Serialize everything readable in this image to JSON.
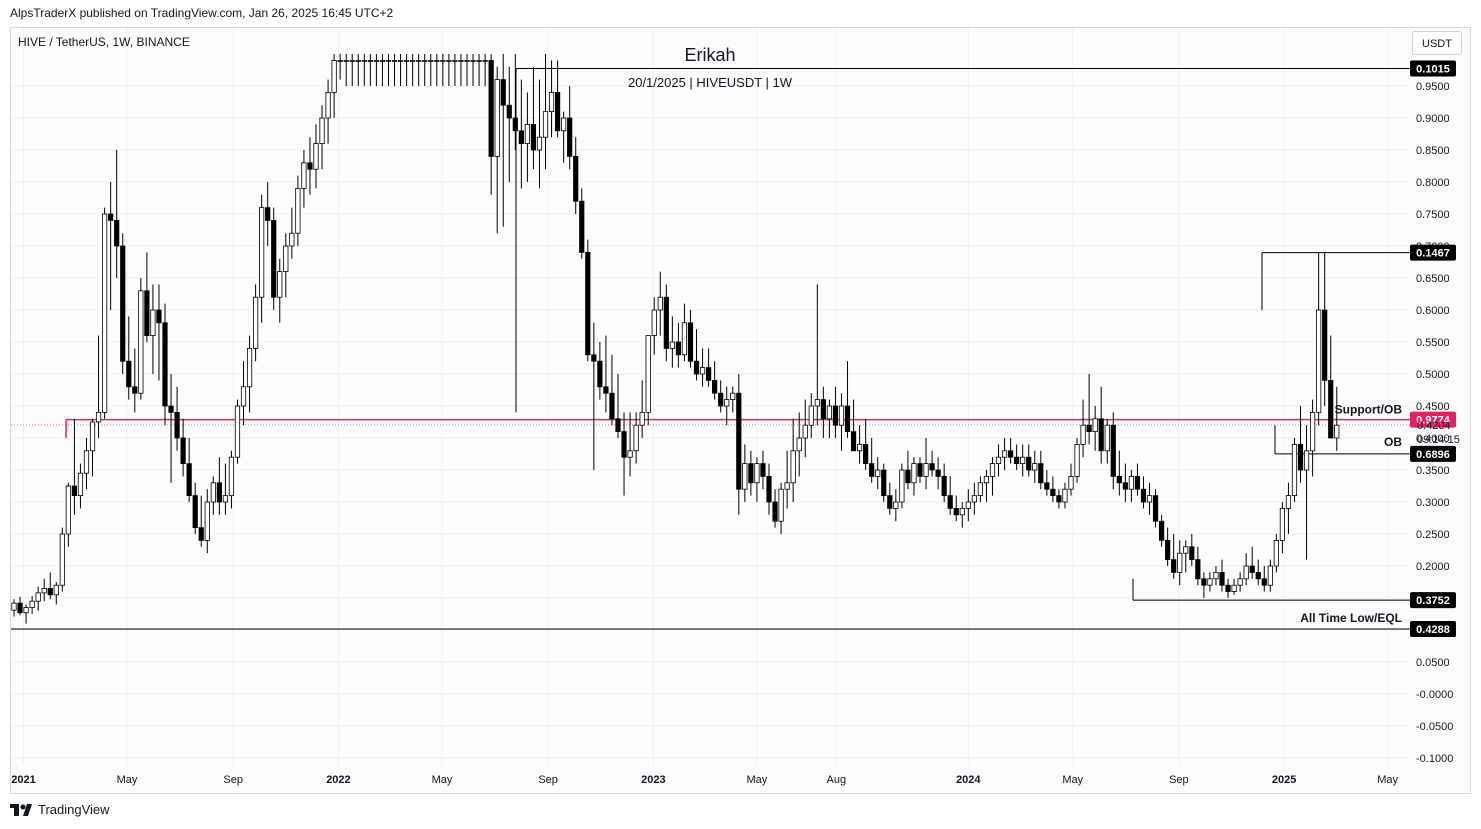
{
  "header": {
    "published_by": "AlpsTraderX published on TradingView.com, Jan 26, 2025 16:45 UTC+2",
    "symbol": "HIVE / TetherUS, 1W, BINANCE",
    "currency_button": "USDT"
  },
  "footer": {
    "brand": "TradingView",
    "logo": "tradingview-logo-icon"
  },
  "annotations": {
    "title": "Erikah",
    "subtitle": "20/1/2025 | HIVEUSDT | 1W",
    "support_label": "Support/OB",
    "ob_label": "OB",
    "atl_label": "All Time Low/EQL",
    "countdown": "09:14:15",
    "last_price": "0.4204"
  },
  "colors": {
    "support_line": "#e91e63",
    "candle_outline": "#000000",
    "bearish_fill": "#000000",
    "bullish_fill": "#ffffff",
    "label_bg": "#000000"
  },
  "chart_data": {
    "type": "candlestick",
    "title": "HIVE / TetherUS, 1W, BINANCE",
    "ylim": [
      -0.1,
      1.0
    ],
    "yticks": [
      -0.1,
      -0.05,
      0.0,
      0.05,
      0.1,
      0.15,
      0.2,
      0.25,
      0.3,
      0.35,
      0.4,
      0.45,
      0.5,
      0.55,
      0.6,
      0.65,
      0.7,
      0.75,
      0.8,
      0.85,
      0.9,
      0.95
    ],
    "ytick_labels": [
      "-0.1000",
      "-0.0500",
      "-0.0000",
      "0.0500",
      "0.1000",
      "0.1500",
      "0.2000",
      "0.2500",
      "0.3000",
      "0.3500",
      "0.4000",
      "0.4500",
      "0.5000",
      "0.5500",
      "0.6000",
      "0.6500",
      "0.7000",
      "0.7500",
      "0.8000",
      "0.8500",
      "0.9000",
      "0.9500"
    ],
    "xticks": [
      {
        "label": "2021",
        "date": "2021-01-01",
        "bold": true
      },
      {
        "label": "May",
        "date": "2021-05-01",
        "bold": false
      },
      {
        "label": "Sep",
        "date": "2021-09-01",
        "bold": false
      },
      {
        "label": "2022",
        "date": "2022-01-01",
        "bold": true
      },
      {
        "label": "May",
        "date": "2022-05-01",
        "bold": false
      },
      {
        "label": "Sep",
        "date": "2022-09-01",
        "bold": false
      },
      {
        "label": "2023",
        "date": "2023-01-01",
        "bold": true
      },
      {
        "label": "May",
        "date": "2023-05-01",
        "bold": false
      },
      {
        "label": "Aug",
        "date": "2023-08-01",
        "bold": false
      },
      {
        "label": "2024",
        "date": "2024-01-01",
        "bold": true
      },
      {
        "label": "May",
        "date": "2024-05-01",
        "bold": false
      },
      {
        "label": "Sep",
        "date": "2024-09-01",
        "bold": false
      },
      {
        "label": "2025",
        "date": "2025-01-01",
        "bold": true
      },
      {
        "label": "May",
        "date": "2025-05-01",
        "bold": false
      }
    ],
    "candles": [
      [
        0.131,
        0.148,
        0.121,
        0.142
      ],
      [
        0.142,
        0.152,
        0.123,
        0.127
      ],
      [
        0.127,
        0.14,
        0.11,
        0.135
      ],
      [
        0.135,
        0.153,
        0.125,
        0.145
      ],
      [
        0.145,
        0.168,
        0.13,
        0.158
      ],
      [
        0.158,
        0.18,
        0.145,
        0.165
      ],
      [
        0.165,
        0.19,
        0.148,
        0.155
      ],
      [
        0.155,
        0.175,
        0.14,
        0.17
      ],
      [
        0.17,
        0.26,
        0.16,
        0.25
      ],
      [
        0.25,
        0.33,
        0.23,
        0.325
      ],
      [
        0.325,
        0.43,
        0.28,
        0.31
      ],
      [
        0.31,
        0.36,
        0.29,
        0.345
      ],
      [
        0.345,
        0.4,
        0.32,
        0.38
      ],
      [
        0.38,
        0.43,
        0.34,
        0.425
      ],
      [
        0.425,
        0.56,
        0.4,
        0.44
      ],
      [
        0.44,
        0.76,
        0.43,
        0.75
      ],
      [
        0.75,
        0.8,
        0.6,
        0.74
      ],
      [
        0.74,
        0.85,
        0.65,
        0.7
      ],
      [
        0.7,
        0.72,
        0.5,
        0.52
      ],
      [
        0.52,
        0.59,
        0.46,
        0.48
      ],
      [
        0.48,
        0.54,
        0.44,
        0.47
      ],
      [
        0.47,
        0.65,
        0.46,
        0.63
      ],
      [
        0.63,
        0.69,
        0.55,
        0.56
      ],
      [
        0.56,
        0.64,
        0.5,
        0.6
      ],
      [
        0.6,
        0.64,
        0.49,
        0.58
      ],
      [
        0.58,
        0.61,
        0.42,
        0.45
      ],
      [
        0.45,
        0.5,
        0.33,
        0.44
      ],
      [
        0.44,
        0.48,
        0.38,
        0.4
      ],
      [
        0.4,
        0.43,
        0.34,
        0.36
      ],
      [
        0.36,
        0.4,
        0.3,
        0.31
      ],
      [
        0.31,
        0.33,
        0.25,
        0.26
      ],
      [
        0.26,
        0.31,
        0.23,
        0.24
      ],
      [
        0.24,
        0.32,
        0.22,
        0.3
      ],
      [
        0.3,
        0.34,
        0.28,
        0.33
      ],
      [
        0.33,
        0.37,
        0.28,
        0.3
      ],
      [
        0.3,
        0.36,
        0.28,
        0.31
      ],
      [
        0.31,
        0.38,
        0.29,
        0.37
      ],
      [
        0.37,
        0.46,
        0.36,
        0.45
      ],
      [
        0.45,
        0.52,
        0.42,
        0.48
      ],
      [
        0.48,
        0.56,
        0.44,
        0.54
      ],
      [
        0.54,
        0.64,
        0.52,
        0.62
      ],
      [
        0.62,
        0.78,
        0.58,
        0.76
      ],
      [
        0.76,
        0.8,
        0.7,
        0.74
      ],
      [
        0.74,
        0.76,
        0.6,
        0.62
      ],
      [
        0.62,
        0.68,
        0.58,
        0.66
      ],
      [
        0.66,
        0.72,
        0.62,
        0.7
      ],
      [
        0.7,
        0.76,
        0.68,
        0.72
      ],
      [
        0.72,
        0.81,
        0.7,
        0.79
      ],
      [
        0.79,
        0.85,
        0.76,
        0.83
      ],
      [
        0.83,
        0.87,
        0.78,
        0.82
      ],
      [
        0.82,
        0.89,
        0.79,
        0.86
      ],
      [
        0.86,
        0.92,
        0.82,
        0.9
      ],
      [
        0.9,
        0.96,
        0.86,
        0.94
      ],
      [
        0.94,
        1.0,
        0.9,
        0.99
      ],
      [
        0.99,
        1.0,
        0.96,
        0.99
      ],
      [
        0.99,
        1.0,
        0.95,
        0.99
      ],
      [
        0.99,
        1.0,
        0.95,
        0.99
      ],
      [
        0.99,
        1.0,
        0.95,
        0.99
      ],
      [
        0.99,
        1.0,
        0.95,
        0.99
      ],
      [
        0.99,
        1.0,
        0.95,
        0.99
      ],
      [
        0.99,
        1.0,
        0.95,
        0.99
      ],
      [
        0.99,
        1.0,
        0.95,
        0.99
      ],
      [
        0.99,
        1.0,
        0.95,
        0.99
      ],
      [
        0.99,
        1.0,
        0.95,
        0.99
      ],
      [
        0.99,
        1.0,
        0.95,
        0.99
      ],
      [
        0.99,
        1.0,
        0.95,
        0.99
      ],
      [
        0.99,
        1.0,
        0.95,
        0.99
      ],
      [
        0.99,
        1.0,
        0.95,
        0.99
      ],
      [
        0.99,
        1.0,
        0.95,
        0.99
      ],
      [
        0.99,
        1.0,
        0.95,
        0.99
      ],
      [
        0.99,
        1.0,
        0.95,
        0.99
      ],
      [
        0.99,
        1.0,
        0.95,
        0.99
      ],
      [
        0.99,
        1.0,
        0.95,
        0.99
      ],
      [
        0.99,
        1.0,
        0.95,
        0.99
      ],
      [
        0.99,
        1.0,
        0.95,
        0.99
      ],
      [
        0.99,
        1.0,
        0.95,
        0.99
      ],
      [
        0.99,
        1.0,
        0.95,
        0.99
      ],
      [
        0.99,
        1.0,
        0.95,
        0.99
      ],
      [
        0.99,
        1.0,
        0.95,
        0.99
      ],
      [
        0.99,
        1.0,
        0.78,
        0.84
      ],
      [
        0.84,
        0.98,
        0.72,
        0.96
      ],
      [
        0.96,
        1.0,
        0.73,
        0.92
      ],
      [
        0.92,
        0.98,
        0.8,
        0.9
      ],
      [
        0.9,
        1.0,
        0.85,
        0.88
      ],
      [
        0.88,
        0.96,
        0.79,
        0.86
      ],
      [
        0.86,
        0.94,
        0.8,
        0.89
      ],
      [
        0.89,
        0.98,
        0.82,
        0.85
      ],
      [
        0.85,
        0.96,
        0.79,
        0.87
      ],
      [
        0.87,
        1.0,
        0.82,
        0.91
      ],
      [
        0.91,
        0.99,
        0.87,
        0.94
      ],
      [
        0.94,
        0.99,
        0.87,
        0.88
      ],
      [
        0.88,
        0.91,
        0.83,
        0.9
      ],
      [
        0.9,
        0.95,
        0.82,
        0.84
      ],
      [
        0.84,
        0.87,
        0.75,
        0.77
      ],
      [
        0.77,
        0.79,
        0.68,
        0.69
      ],
      [
        0.69,
        0.71,
        0.52,
        0.53
      ],
      [
        0.53,
        0.58,
        0.35,
        0.52
      ],
      [
        0.52,
        0.55,
        0.46,
        0.48
      ],
      [
        0.48,
        0.56,
        0.44,
        0.47
      ],
      [
        0.47,
        0.53,
        0.42,
        0.43
      ],
      [
        0.43,
        0.5,
        0.4,
        0.41
      ],
      [
        0.41,
        0.44,
        0.31,
        0.37
      ],
      [
        0.37,
        0.44,
        0.34,
        0.38
      ],
      [
        0.38,
        0.44,
        0.36,
        0.42
      ],
      [
        0.42,
        0.49,
        0.4,
        0.44
      ],
      [
        0.44,
        0.56,
        0.42,
        0.56
      ],
      [
        0.56,
        0.62,
        0.53,
        0.6
      ],
      [
        0.6,
        0.66,
        0.56,
        0.62
      ],
      [
        0.62,
        0.64,
        0.52,
        0.54
      ],
      [
        0.54,
        0.59,
        0.51,
        0.55
      ],
      [
        0.55,
        0.58,
        0.51,
        0.53
      ],
      [
        0.53,
        0.61,
        0.52,
        0.58
      ],
      [
        0.58,
        0.6,
        0.51,
        0.52
      ],
      [
        0.52,
        0.57,
        0.49,
        0.5
      ],
      [
        0.5,
        0.54,
        0.48,
        0.51
      ],
      [
        0.51,
        0.54,
        0.48,
        0.49
      ],
      [
        0.49,
        0.52,
        0.46,
        0.47
      ],
      [
        0.47,
        0.49,
        0.44,
        0.45
      ],
      [
        0.45,
        0.48,
        0.42,
        0.46
      ],
      [
        0.46,
        0.48,
        0.44,
        0.47
      ],
      [
        0.47,
        0.5,
        0.28,
        0.32
      ],
      [
        0.32,
        0.39,
        0.3,
        0.36
      ],
      [
        0.36,
        0.38,
        0.31,
        0.33
      ],
      [
        0.33,
        0.37,
        0.3,
        0.36
      ],
      [
        0.36,
        0.38,
        0.32,
        0.34
      ],
      [
        0.34,
        0.36,
        0.28,
        0.3
      ],
      [
        0.3,
        0.32,
        0.26,
        0.27
      ],
      [
        0.27,
        0.33,
        0.25,
        0.32
      ],
      [
        0.32,
        0.38,
        0.29,
        0.33
      ],
      [
        0.33,
        0.43,
        0.3,
        0.38
      ],
      [
        0.38,
        0.44,
        0.34,
        0.4
      ],
      [
        0.4,
        0.46,
        0.37,
        0.42
      ],
      [
        0.42,
        0.47,
        0.4,
        0.45
      ],
      [
        0.45,
        0.64,
        0.42,
        0.46
      ],
      [
        0.46,
        0.48,
        0.4,
        0.43
      ],
      [
        0.43,
        0.46,
        0.4,
        0.45
      ],
      [
        0.45,
        0.48,
        0.4,
        0.42
      ],
      [
        0.42,
        0.47,
        0.38,
        0.45
      ],
      [
        0.45,
        0.52,
        0.4,
        0.41
      ],
      [
        0.41,
        0.46,
        0.38,
        0.38
      ],
      [
        0.38,
        0.42,
        0.36,
        0.39
      ],
      [
        0.39,
        0.43,
        0.35,
        0.36
      ],
      [
        0.36,
        0.4,
        0.33,
        0.34
      ],
      [
        0.34,
        0.37,
        0.32,
        0.35
      ],
      [
        0.35,
        0.36,
        0.3,
        0.31
      ],
      [
        0.31,
        0.33,
        0.28,
        0.29
      ],
      [
        0.29,
        0.32,
        0.27,
        0.3
      ],
      [
        0.3,
        0.36,
        0.29,
        0.35
      ],
      [
        0.35,
        0.38,
        0.32,
        0.33
      ],
      [
        0.33,
        0.37,
        0.31,
        0.36
      ],
      [
        0.36,
        0.37,
        0.33,
        0.34
      ],
      [
        0.34,
        0.4,
        0.32,
        0.36
      ],
      [
        0.36,
        0.38,
        0.34,
        0.35
      ],
      [
        0.35,
        0.37,
        0.32,
        0.34
      ],
      [
        0.34,
        0.36,
        0.3,
        0.31
      ],
      [
        0.31,
        0.34,
        0.28,
        0.29
      ],
      [
        0.29,
        0.31,
        0.27,
        0.28
      ],
      [
        0.28,
        0.3,
        0.26,
        0.29
      ],
      [
        0.29,
        0.32,
        0.27,
        0.3
      ],
      [
        0.3,
        0.33,
        0.28,
        0.31
      ],
      [
        0.31,
        0.34,
        0.3,
        0.33
      ],
      [
        0.33,
        0.35,
        0.3,
        0.34
      ],
      [
        0.34,
        0.37,
        0.31,
        0.36
      ],
      [
        0.36,
        0.39,
        0.34,
        0.37
      ],
      [
        0.37,
        0.4,
        0.35,
        0.38
      ],
      [
        0.38,
        0.4,
        0.36,
        0.37
      ],
      [
        0.37,
        0.39,
        0.35,
        0.36
      ],
      [
        0.36,
        0.39,
        0.34,
        0.37
      ],
      [
        0.37,
        0.39,
        0.34,
        0.35
      ],
      [
        0.35,
        0.38,
        0.33,
        0.36
      ],
      [
        0.36,
        0.38,
        0.32,
        0.33
      ],
      [
        0.33,
        0.35,
        0.31,
        0.32
      ],
      [
        0.32,
        0.34,
        0.3,
        0.31
      ],
      [
        0.31,
        0.32,
        0.29,
        0.3
      ],
      [
        0.3,
        0.33,
        0.29,
        0.32
      ],
      [
        0.32,
        0.36,
        0.31,
        0.34
      ],
      [
        0.34,
        0.4,
        0.33,
        0.39
      ],
      [
        0.39,
        0.46,
        0.37,
        0.42
      ],
      [
        0.42,
        0.5,
        0.39,
        0.41
      ],
      [
        0.41,
        0.45,
        0.38,
        0.43
      ],
      [
        0.43,
        0.48,
        0.36,
        0.38
      ],
      [
        0.38,
        0.43,
        0.36,
        0.42
      ],
      [
        0.42,
        0.44,
        0.32,
        0.34
      ],
      [
        0.34,
        0.38,
        0.31,
        0.33
      ],
      [
        0.33,
        0.36,
        0.3,
        0.32
      ],
      [
        0.32,
        0.35,
        0.3,
        0.34
      ],
      [
        0.34,
        0.36,
        0.31,
        0.32
      ],
      [
        0.32,
        0.34,
        0.29,
        0.3
      ],
      [
        0.3,
        0.33,
        0.28,
        0.31
      ],
      [
        0.31,
        0.32,
        0.26,
        0.27
      ],
      [
        0.27,
        0.28,
        0.23,
        0.24
      ],
      [
        0.24,
        0.26,
        0.2,
        0.21
      ],
      [
        0.21,
        0.25,
        0.18,
        0.19
      ],
      [
        0.19,
        0.24,
        0.17,
        0.22
      ],
      [
        0.22,
        0.24,
        0.19,
        0.23
      ],
      [
        0.23,
        0.25,
        0.2,
        0.21
      ],
      [
        0.21,
        0.23,
        0.17,
        0.18
      ],
      [
        0.18,
        0.19,
        0.15,
        0.17
      ],
      [
        0.17,
        0.19,
        0.16,
        0.18
      ],
      [
        0.18,
        0.2,
        0.17,
        0.19
      ],
      [
        0.19,
        0.21,
        0.16,
        0.17
      ],
      [
        0.17,
        0.18,
        0.15,
        0.16
      ],
      [
        0.16,
        0.18,
        0.155,
        0.17
      ],
      [
        0.17,
        0.19,
        0.16,
        0.18
      ],
      [
        0.18,
        0.22,
        0.17,
        0.2
      ],
      [
        0.2,
        0.23,
        0.18,
        0.19
      ],
      [
        0.19,
        0.21,
        0.17,
        0.18
      ],
      [
        0.18,
        0.2,
        0.16,
        0.17
      ],
      [
        0.17,
        0.21,
        0.16,
        0.2
      ],
      [
        0.2,
        0.25,
        0.19,
        0.24
      ],
      [
        0.24,
        0.3,
        0.22,
        0.29
      ],
      [
        0.29,
        0.33,
        0.25,
        0.31
      ],
      [
        0.31,
        0.4,
        0.3,
        0.39
      ],
      [
        0.39,
        0.45,
        0.33,
        0.35
      ],
      [
        0.35,
        0.42,
        0.21,
        0.38
      ],
      [
        0.38,
        0.46,
        0.34,
        0.44
      ],
      [
        0.44,
        0.689,
        0.42,
        0.6
      ],
      [
        0.6,
        0.69,
        0.45,
        0.49
      ],
      [
        0.49,
        0.56,
        0.4,
        0.4
      ],
      [
        0.4,
        0.48,
        0.38,
        0.42
      ]
    ],
    "horizontal_levels": [
      {
        "label": "Support/OB",
        "value": 0.4288,
        "color": "#e91e63"
      },
      {
        "label": "OB",
        "value": 0.3752
      },
      {
        "label": "All Time Low/EQL",
        "value": 0.1015
      },
      {
        "label": "",
        "value": 0.1467
      },
      {
        "label": "",
        "value": 0.6896
      },
      {
        "label": "",
        "value": 0.9774
      }
    ],
    "price_tags": [
      "0.9774",
      "0.6896",
      "0.4288",
      "0.3752",
      "0.1467",
      "0.1015"
    ],
    "current_price": 0.4204
  }
}
